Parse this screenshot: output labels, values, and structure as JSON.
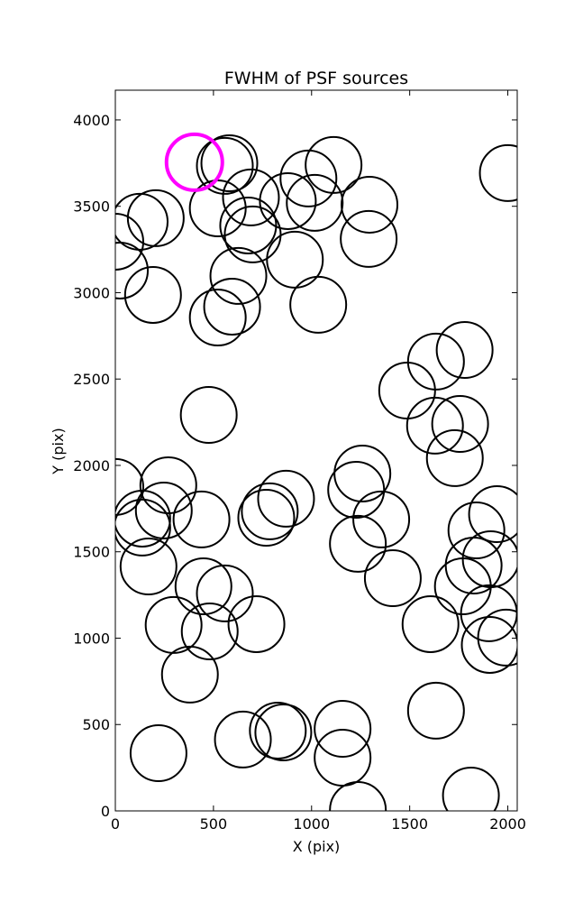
{
  "chart_data": {
    "type": "scatter",
    "title": "FWHM of PSF sources",
    "x_label": "X (pix)",
    "y_label": "Y (pix)",
    "xlim": [
      0,
      2048
    ],
    "ylim": [
      0,
      4172
    ],
    "xticks": [
      0,
      500,
      1000,
      1500,
      2000
    ],
    "yticks": [
      0,
      500,
      1000,
      1500,
      2000,
      2500,
      3000,
      3500,
      4000
    ],
    "marker": "open-circle",
    "series": [
      {
        "color": "#000000",
        "linewidth": 2,
        "x": [
          0,
          23,
          124,
          206,
          192,
          522,
          581,
          558,
          522,
          627,
          595,
          691,
          677,
          700,
          879,
          915,
          984,
          1016,
          1112,
          1295,
          1291,
          1034,
          2000,
          1780,
          1634,
          1487,
          1629,
          1757,
          1730,
          476,
          0,
          270,
          247,
          137,
          137,
          439,
          169,
          787,
          769,
          870,
          1259,
          1227,
          1355,
          1236,
          1414,
          449,
          558,
          297,
          481,
          719,
          380,
          1840,
          1826,
          1771,
          1913,
          1945,
          1904,
          1991,
          1908,
          1606,
          1634,
          1812,
          1236,
          1158,
          1158,
          828,
          856,
          650,
          220
        ],
        "values": [
          3295,
          3128,
          3410,
          3431,
          2987,
          3488,
          3749,
          3734,
          2856,
          3097,
          2919,
          3551,
          3389,
          3337,
          3530,
          3191,
          3661,
          3520,
          3739,
          3509,
          3311,
          2930,
          3692,
          2668,
          2601,
          2433,
          2230,
          2240,
          2042,
          2292,
          1875,
          1885,
          1739,
          1692,
          1640,
          1687,
          1415,
          1734,
          1697,
          1807,
          1953,
          1859,
          1687,
          1546,
          1347,
          1300,
          1259,
          1076,
          1039,
          1081,
          789,
          1624,
          1420,
          1300,
          1457,
          1718,
          1144,
          1003,
          961,
          1081,
          580,
          89,
          5,
          475,
          308,
          465,
          454,
          413,
          334
        ]
      },
      {
        "color": "#ff00ff",
        "linewidth": 4,
        "x": [
          403
        ],
        "values": [
          3755
        ]
      }
    ]
  }
}
